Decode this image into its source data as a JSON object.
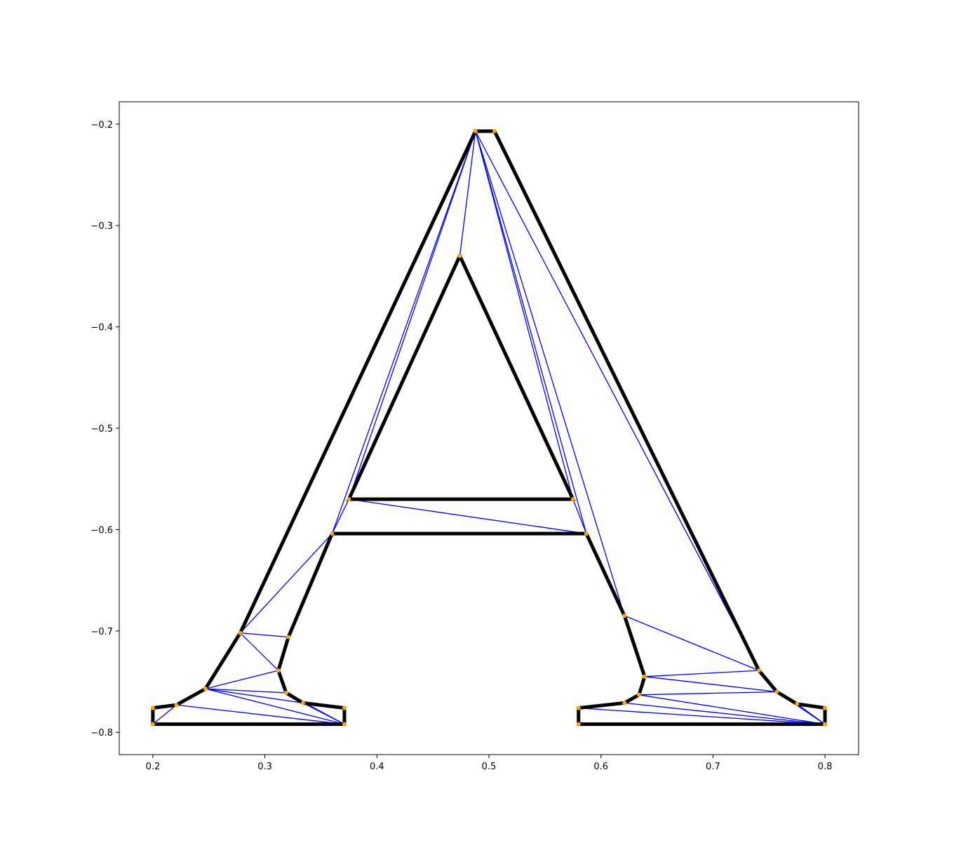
{
  "chart_data": {
    "type": "line",
    "title": "",
    "xlabel": "",
    "ylabel": "",
    "xlim": [
      0.17,
      0.83
    ],
    "ylim": [
      -0.822,
      -0.178
    ],
    "grid": false,
    "x_ticks": [
      {
        "value": 0.2,
        "label": "0.2"
      },
      {
        "value": 0.3,
        "label": "0.3"
      },
      {
        "value": 0.4,
        "label": "0.4"
      },
      {
        "value": 0.5,
        "label": "0.5"
      },
      {
        "value": 0.6,
        "label": "0.6"
      },
      {
        "value": 0.7,
        "label": "0.7"
      },
      {
        "value": 0.8,
        "label": "0.8"
      }
    ],
    "y_ticks": [
      {
        "value": -0.2,
        "label": "−0.2"
      },
      {
        "value": -0.3,
        "label": "−0.3"
      },
      {
        "value": -0.4,
        "label": "−0.4"
      },
      {
        "value": -0.5,
        "label": "−0.5"
      },
      {
        "value": -0.6,
        "label": "−0.6"
      },
      {
        "value": -0.7,
        "label": "−0.7"
      },
      {
        "value": -0.8,
        "label": "−0.8"
      }
    ],
    "colors": {
      "outline": "#000000",
      "triangulation": "#0000ff",
      "vertices": "#ffa500"
    },
    "outer_outline": [
      [
        0.488,
        -0.207
      ],
      [
        0.505,
        -0.207
      ],
      [
        0.741,
        -0.739
      ],
      [
        0.757,
        -0.76
      ],
      [
        0.775,
        -0.772
      ],
      [
        0.8,
        -0.776
      ],
      [
        0.8,
        -0.792
      ],
      [
        0.58,
        -0.792
      ],
      [
        0.58,
        -0.776
      ],
      [
        0.621,
        -0.771
      ],
      [
        0.634,
        -0.763
      ],
      [
        0.639,
        -0.745
      ],
      [
        0.621,
        -0.685
      ],
      [
        0.587,
        -0.604
      ],
      [
        0.36,
        -0.604
      ],
      [
        0.321,
        -0.706
      ],
      [
        0.312,
        -0.739
      ],
      [
        0.319,
        -0.761
      ],
      [
        0.334,
        -0.771
      ],
      [
        0.371,
        -0.776
      ],
      [
        0.371,
        -0.792
      ],
      [
        0.2,
        -0.792
      ],
      [
        0.2,
        -0.776
      ],
      [
        0.221,
        -0.773
      ],
      [
        0.247,
        -0.757
      ],
      [
        0.278,
        -0.702
      ],
      [
        0.488,
        -0.207
      ]
    ],
    "inner_outline": [
      [
        0.474,
        -0.33
      ],
      [
        0.575,
        -0.57
      ],
      [
        0.375,
        -0.57
      ],
      [
        0.474,
        -0.33
      ]
    ],
    "triangulation_edges": [
      [
        [
          0.488,
          -0.207
        ],
        [
          0.474,
          -0.33
        ]
      ],
      [
        [
          0.488,
          -0.207
        ],
        [
          0.375,
          -0.57
        ]
      ],
      [
        [
          0.488,
          -0.207
        ],
        [
          0.36,
          -0.604
        ]
      ],
      [
        [
          0.488,
          -0.207
        ],
        [
          0.575,
          -0.57
        ]
      ],
      [
        [
          0.488,
          -0.207
        ],
        [
          0.587,
          -0.604
        ]
      ],
      [
        [
          0.488,
          -0.207
        ],
        [
          0.621,
          -0.685
        ]
      ],
      [
        [
          0.488,
          -0.207
        ],
        [
          0.741,
          -0.739
        ]
      ],
      [
        [
          0.375,
          -0.57
        ],
        [
          0.36,
          -0.604
        ]
      ],
      [
        [
          0.375,
          -0.57
        ],
        [
          0.587,
          -0.604
        ]
      ],
      [
        [
          0.575,
          -0.57
        ],
        [
          0.587,
          -0.604
        ]
      ],
      [
        [
          0.36,
          -0.604
        ],
        [
          0.278,
          -0.702
        ]
      ],
      [
        [
          0.278,
          -0.702
        ],
        [
          0.321,
          -0.706
        ]
      ],
      [
        [
          0.278,
          -0.702
        ],
        [
          0.312,
          -0.739
        ]
      ],
      [
        [
          0.247,
          -0.757
        ],
        [
          0.312,
          -0.739
        ]
      ],
      [
        [
          0.247,
          -0.757
        ],
        [
          0.319,
          -0.761
        ]
      ],
      [
        [
          0.247,
          -0.757
        ],
        [
          0.334,
          -0.771
        ]
      ],
      [
        [
          0.247,
          -0.757
        ],
        [
          0.371,
          -0.792
        ]
      ],
      [
        [
          0.221,
          -0.773
        ],
        [
          0.371,
          -0.792
        ]
      ],
      [
        [
          0.2,
          -0.792
        ],
        [
          0.221,
          -0.773
        ]
      ],
      [
        [
          0.334,
          -0.771
        ],
        [
          0.371,
          -0.792
        ]
      ],
      [
        [
          0.319,
          -0.761
        ],
        [
          0.371,
          -0.792
        ]
      ],
      [
        [
          0.621,
          -0.685
        ],
        [
          0.741,
          -0.739
        ]
      ],
      [
        [
          0.639,
          -0.745
        ],
        [
          0.741,
          -0.739
        ]
      ],
      [
        [
          0.639,
          -0.745
        ],
        [
          0.757,
          -0.76
        ]
      ],
      [
        [
          0.634,
          -0.763
        ],
        [
          0.757,
          -0.76
        ]
      ],
      [
        [
          0.634,
          -0.763
        ],
        [
          0.8,
          -0.792
        ]
      ],
      [
        [
          0.621,
          -0.771
        ],
        [
          0.8,
          -0.792
        ]
      ],
      [
        [
          0.58,
          -0.776
        ],
        [
          0.8,
          -0.792
        ]
      ],
      [
        [
          0.757,
          -0.76
        ],
        [
          0.8,
          -0.792
        ]
      ],
      [
        [
          0.775,
          -0.772
        ],
        [
          0.8,
          -0.792
        ]
      ]
    ]
  }
}
